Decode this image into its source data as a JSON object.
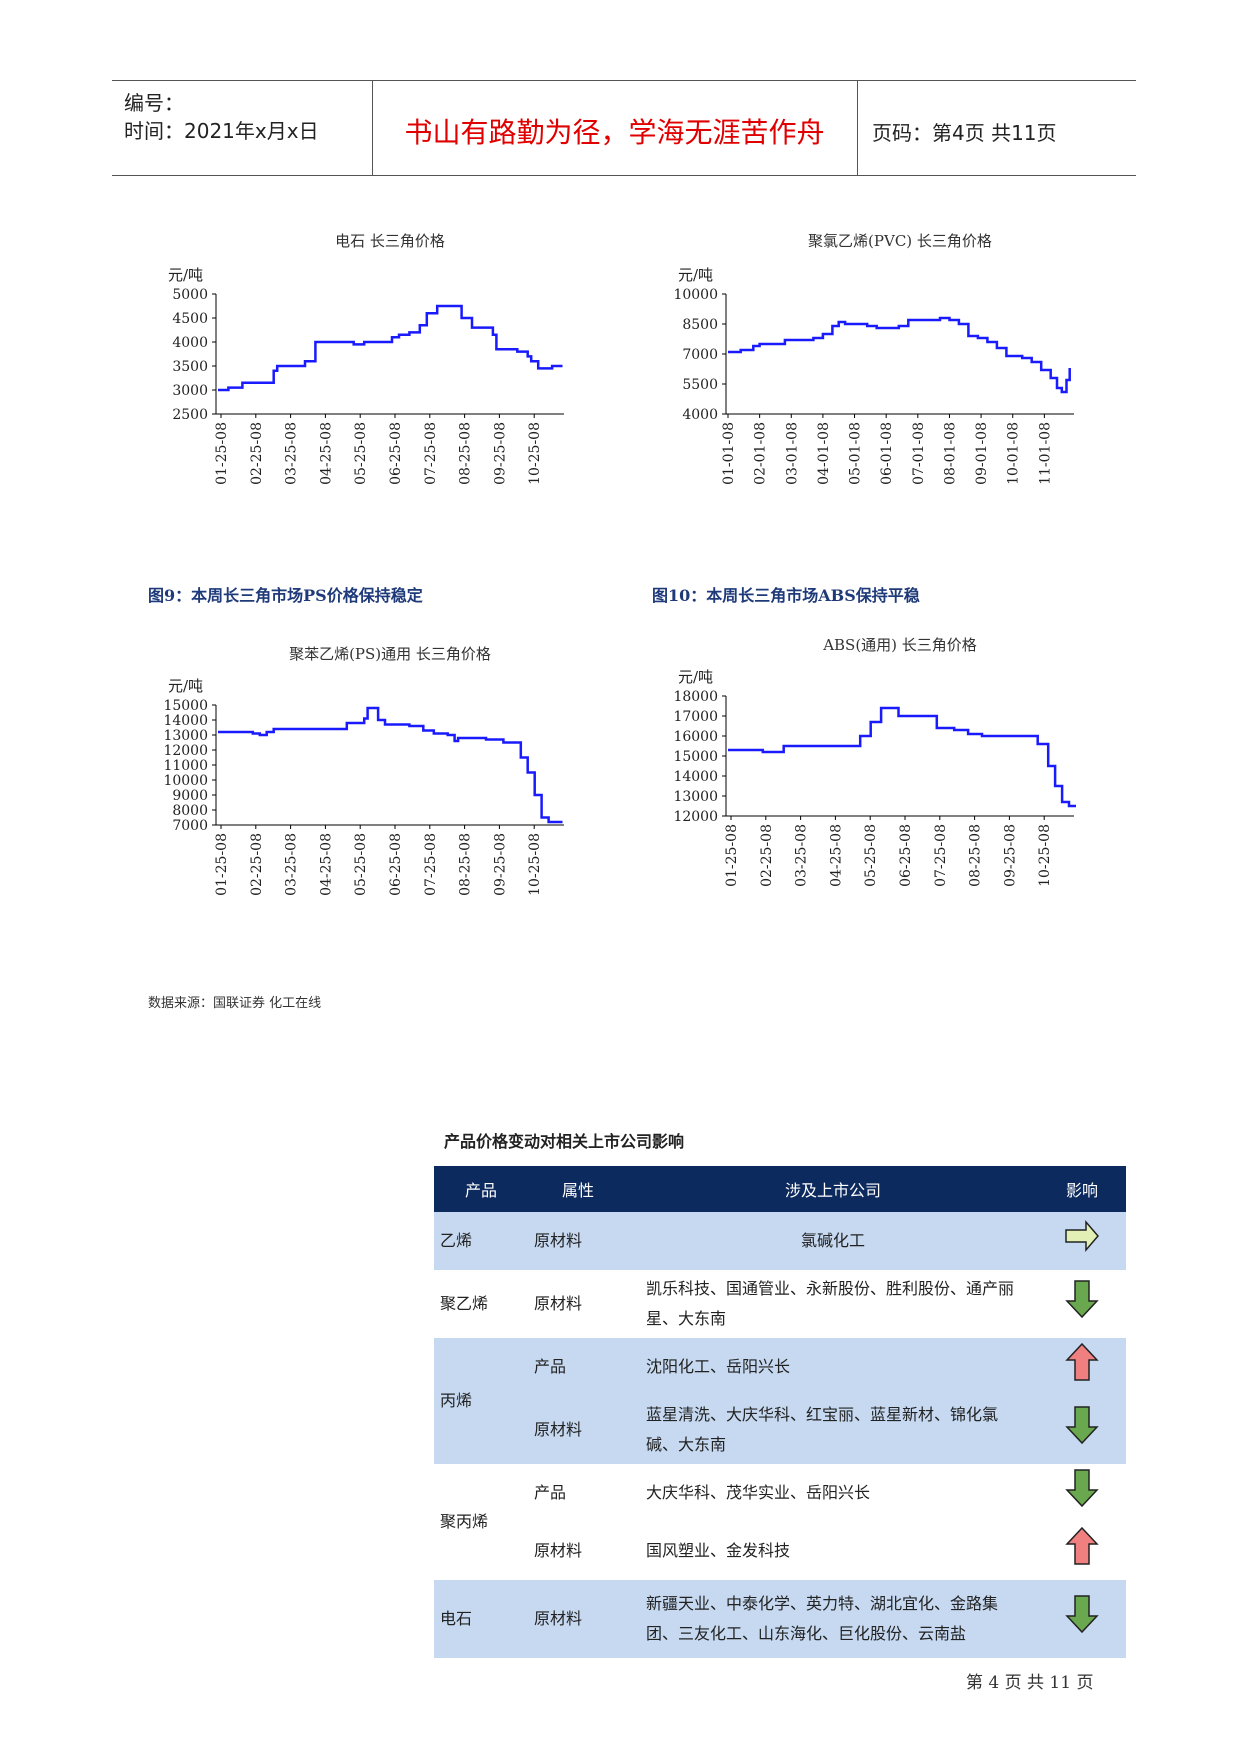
{
  "header": {
    "number_label": "编号：",
    "time_label": "时间：2021年x月x日",
    "motto": "书山有路勤为径，学海无涯苦作舟",
    "page_code": "页码：第4页 共11页"
  },
  "charts": {
    "c1": {
      "title": "电石 长三角价格",
      "unit": "元/吨"
    },
    "c2": {
      "title": "聚氯乙烯(PVC) 长三角价格",
      "unit": "元/吨"
    },
    "c3": {
      "title": "聚苯乙烯(PS)通用 长三角价格",
      "unit": "元/吨"
    },
    "c4": {
      "title": "ABS(通用) 长三角价格",
      "unit": "元/吨"
    }
  },
  "chart_data": [
    {
      "type": "line",
      "title": "电石 长三角价格",
      "ylabel": "元/吨",
      "ylim": [
        2500,
        5000
      ],
      "yticks": [
        "5000",
        "4500",
        "4000",
        "3500",
        "3000",
        "2500"
      ],
      "xticks": [
        "01-25-08",
        "02-25-08",
        "03-25-08",
        "04-25-08",
        "05-25-08",
        "06-25-08",
        "07-25-08",
        "08-25-08",
        "09-25-08",
        "10-25-08"
      ],
      "x": [
        0,
        0.3,
        0.7,
        1.0,
        1.3,
        1.6,
        1.7,
        2.0,
        2.2,
        2.5,
        2.8,
        3.0,
        3.4,
        3.7,
        3.9,
        4.0,
        4.2,
        4.5,
        4.7,
        5.0,
        5.2,
        5.5,
        5.8,
        6.0,
        6.3,
        6.6,
        6.9,
        7.0,
        7.3,
        7.6,
        7.9,
        8.0,
        8.3,
        8.6,
        8.9,
        9.0,
        9.2,
        9.6,
        9.9
      ],
      "values": [
        3000,
        3050,
        3150,
        3150,
        3150,
        3400,
        3500,
        3500,
        3500,
        3600,
        4000,
        4000,
        4000,
        4000,
        3950,
        3950,
        4000,
        4000,
        4000,
        4100,
        4150,
        4200,
        4350,
        4600,
        4750,
        4750,
        4750,
        4500,
        4300,
        4300,
        4150,
        3850,
        3850,
        3800,
        3700,
        3600,
        3450,
        3500,
        3500
      ]
    },
    {
      "type": "line",
      "title": "聚氯乙烯(PVC) 长三角价格",
      "ylabel": "元/吨",
      "ylim": [
        4000,
        10000
      ],
      "yticks": [
        "10000",
        "8500",
        "7000",
        "5500",
        "4000"
      ],
      "xticks": [
        "01-01-08",
        "02-01-08",
        "03-01-08",
        "04-01-08",
        "05-01-08",
        "06-01-08",
        "07-01-08",
        "08-01-08",
        "09-01-08",
        "10-01-08",
        "11-01-08"
      ],
      "x": [
        0,
        0.4,
        0.8,
        1.0,
        1.5,
        1.8,
        2.0,
        2.4,
        2.7,
        3.0,
        3.3,
        3.5,
        3.7,
        4.0,
        4.4,
        4.7,
        5.0,
        5.4,
        5.7,
        6.0,
        6.4,
        6.7,
        7.0,
        7.3,
        7.6,
        7.9,
        8.2,
        8.5,
        8.8,
        9.0,
        9.3,
        9.6,
        9.9,
        10.2,
        10.4,
        10.55,
        10.7,
        10.8
      ],
      "values": [
        7100,
        7200,
        7400,
        7500,
        7500,
        7700,
        7700,
        7700,
        7800,
        8000,
        8400,
        8600,
        8500,
        8500,
        8400,
        8300,
        8300,
        8400,
        8700,
        8700,
        8700,
        8800,
        8700,
        8500,
        7900,
        7800,
        7600,
        7300,
        6900,
        6900,
        6800,
        6600,
        6200,
        5800,
        5300,
        5100,
        5700,
        6300
      ]
    },
    {
      "type": "line",
      "title": "聚苯乙烯(PS)通用 长三角价格",
      "ylabel": "元/吨",
      "ylim": [
        7000,
        15000
      ],
      "yticks": [
        "15000",
        "14000",
        "13000",
        "12000",
        "11000",
        "10000",
        "9000",
        "8000",
        "7000"
      ],
      "xticks": [
        "01-25-08",
        "02-25-08",
        "03-25-08",
        "04-25-08",
        "05-25-08",
        "06-25-08",
        "07-25-08",
        "08-25-08",
        "09-25-08",
        "10-25-08"
      ],
      "x": [
        0,
        0.5,
        1.0,
        1.2,
        1.4,
        1.6,
        2.0,
        2.5,
        3.0,
        3.5,
        3.7,
        4.0,
        4.2,
        4.3,
        4.6,
        4.8,
        5.0,
        5.5,
        5.9,
        6.2,
        6.6,
        6.8,
        6.9,
        7.2,
        7.7,
        8.2,
        8.5,
        8.7,
        8.9,
        9.1,
        9.3,
        9.5,
        9.6,
        9.9
      ],
      "values": [
        13200,
        13200,
        13100,
        13000,
        13200,
        13400,
        13400,
        13400,
        13400,
        13400,
        13800,
        13800,
        14100,
        14800,
        14000,
        13700,
        13700,
        13600,
        13300,
        13100,
        13000,
        12600,
        12800,
        12800,
        12700,
        12500,
        12500,
        11500,
        10500,
        9000,
        7500,
        7200,
        7200,
        7200
      ]
    },
    {
      "type": "line",
      "title": "ABS(通用) 长三角价格",
      "ylabel": "元/吨",
      "ylim": [
        12000,
        18000
      ],
      "yticks": [
        "18000",
        "17000",
        "16000",
        "15000",
        "14000",
        "13000",
        "12000"
      ],
      "xticks": [
        "01-25-08",
        "02-25-08",
        "03-25-08",
        "04-25-08",
        "05-25-08",
        "06-25-08",
        "07-25-08",
        "08-25-08",
        "09-25-08",
        "10-25-08"
      ],
      "x": [
        0,
        0.5,
        1.0,
        1.3,
        1.6,
        2.0,
        2.5,
        3.0,
        3.5,
        3.8,
        4.1,
        4.4,
        4.6,
        4.9,
        5.1,
        5.6,
        6.0,
        6.5,
        6.9,
        7.3,
        7.8,
        8.2,
        8.6,
        8.9,
        9.2,
        9.4,
        9.6,
        9.8,
        10.0
      ],
      "values": [
        15300,
        15300,
        15200,
        15200,
        15500,
        15500,
        15500,
        15500,
        15500,
        16000,
        16700,
        17400,
        17400,
        17000,
        17000,
        17000,
        16400,
        16300,
        16100,
        16000,
        16000,
        16000,
        16000,
        15600,
        14500,
        13500,
        12700,
        12500,
        12500
      ]
    }
  ],
  "figures": {
    "fig9": "图9：本周长三角市场PS价格保持稳定",
    "fig10": "图10：本周长三角市场ABS保持平稳"
  },
  "source": "数据来源：国联证券  化工在线",
  "table": {
    "title": "产品价格变动对相关上市公司影响",
    "headers": [
      "产品",
      "属性",
      "涉及上市公司",
      "影响"
    ],
    "rows": [
      {
        "product": "乙烯",
        "attr": "原材料",
        "companies": "氯碱化工",
        "impact": "flat"
      },
      {
        "product": "聚乙烯",
        "attr": "原材料",
        "companies": "凯乐科技、国通管业、永新股份、胜利股份、通产丽星、大东南",
        "impact": "down"
      },
      {
        "product": "丙烯",
        "attr": "产品",
        "companies": "沈阳化工、岳阳兴长",
        "impact": "up"
      },
      {
        "product": "",
        "attr": "原材料",
        "companies": "蓝星清洗、大庆华科、红宝丽、蓝星新材、锦化氯碱、大东南",
        "impact": "down"
      },
      {
        "product": "聚丙烯",
        "attr": "产品",
        "companies": "大庆华科、茂华实业、岳阳兴长",
        "impact": "down"
      },
      {
        "product": "",
        "attr": "原材料",
        "companies": "国风塑业、金发科技",
        "impact": "up"
      },
      {
        "product": "电石",
        "attr": "原材料",
        "companies": "新疆天业、中泰化学、英力特、湖北宜化、金路集团、三友化工、山东海化、巨化股份、云南盐",
        "impact": "down"
      }
    ]
  },
  "footer": "第 4 页 共 11 页",
  "colors": {
    "line": "#1a1aff",
    "header_bg": "#0c2a5e",
    "row_blue": "#c6d9f1",
    "up": "#f08080",
    "down": "#6aa84f",
    "flat": "#e2f0b6"
  }
}
